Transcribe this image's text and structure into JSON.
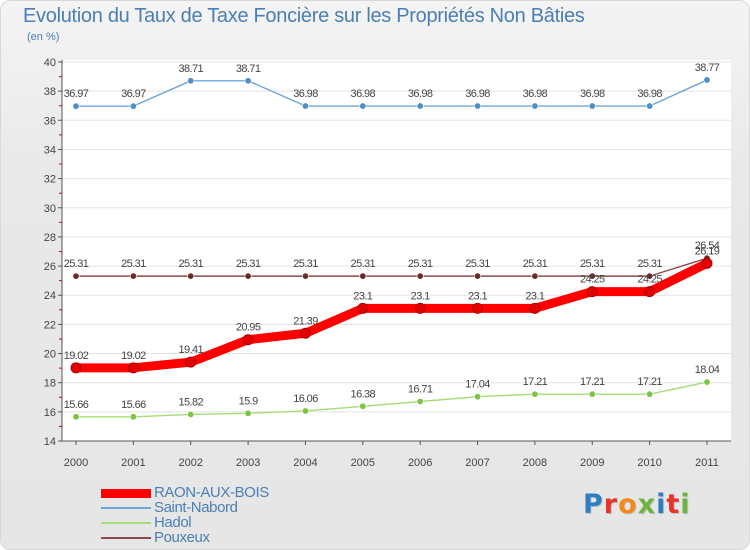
{
  "title": "Evolution du Taux de Taxe Foncière sur les Propriétés Non Bâties",
  "subtitle": "(en %)",
  "logo_text": "Proxiti",
  "chart_data": {
    "type": "line",
    "title": "Evolution du Taux de Taxe Foncière sur les Propriétés Non Bâties",
    "ylabel": "(en %)",
    "xlabel": "",
    "categories": [
      "2000",
      "2001",
      "2002",
      "2003",
      "2004",
      "2005",
      "2006",
      "2007",
      "2008",
      "2009",
      "2010",
      "2011"
    ],
    "ylim": [
      14,
      40
    ],
    "yticks": [
      14,
      16,
      18,
      20,
      22,
      24,
      26,
      28,
      30,
      32,
      34,
      36,
      38,
      40
    ],
    "grid": "horizontal",
    "legend_position": "bottom-left",
    "series": [
      {
        "name": "RAON-AUX-BOIS",
        "color": "#ff0000",
        "marker": "#e30000",
        "values": [
          19.02,
          19.02,
          19.41,
          20.95,
          21.39,
          23.1,
          23.1,
          23.1,
          23.1,
          24.25,
          24.25,
          26.19
        ],
        "labels": [
          "19.02",
          "19.02",
          "19.41",
          "20.95",
          "21.39",
          "23.1",
          "23.1",
          "23.1",
          "23.1",
          "24.25",
          "24.25",
          "26.19"
        ]
      },
      {
        "name": "Saint-Nabord",
        "color": "#6ba7d8",
        "marker": "#4d8fc9",
        "values": [
          36.97,
          36.97,
          38.71,
          38.71,
          36.98,
          36.98,
          36.98,
          36.98,
          36.98,
          36.98,
          36.98,
          38.77
        ],
        "labels": [
          "36.97",
          "36.97",
          "38.71",
          "38.71",
          "36.98",
          "36.98",
          "36.98",
          "36.98",
          "36.98",
          "36.98",
          "36.98",
          "38.77"
        ]
      },
      {
        "name": "Hadol",
        "color": "#a6dc74",
        "marker": "#7cc444",
        "values": [
          15.66,
          15.66,
          15.82,
          15.9,
          16.06,
          16.38,
          16.71,
          17.04,
          17.21,
          17.21,
          17.21,
          18.04
        ],
        "labels": [
          "15.66",
          "15.66",
          "15.82",
          "15.9",
          "16.06",
          "16.38",
          "16.71",
          "17.04",
          "17.21",
          "17.21",
          "17.21",
          "18.04"
        ]
      },
      {
        "name": "Pouxeux",
        "color": "#8b4a4a",
        "marker": "#6a2a2a",
        "values": [
          25.31,
          25.31,
          25.31,
          25.31,
          25.31,
          25.31,
          25.31,
          25.31,
          25.31,
          25.31,
          25.31,
          26.54
        ],
        "labels": [
          "25.31",
          "25.31",
          "25.31",
          "25.31",
          "25.31",
          "25.31",
          "25.31",
          "25.31",
          "25.31",
          "25.31",
          "25.31",
          "26.54"
        ]
      }
    ]
  },
  "logo_colors": [
    "#2f7ec2",
    "#e8322b",
    "#f08a1c",
    "#6cb33f",
    "#2f7ec2",
    "#e8322b",
    "#6cb33f"
  ]
}
